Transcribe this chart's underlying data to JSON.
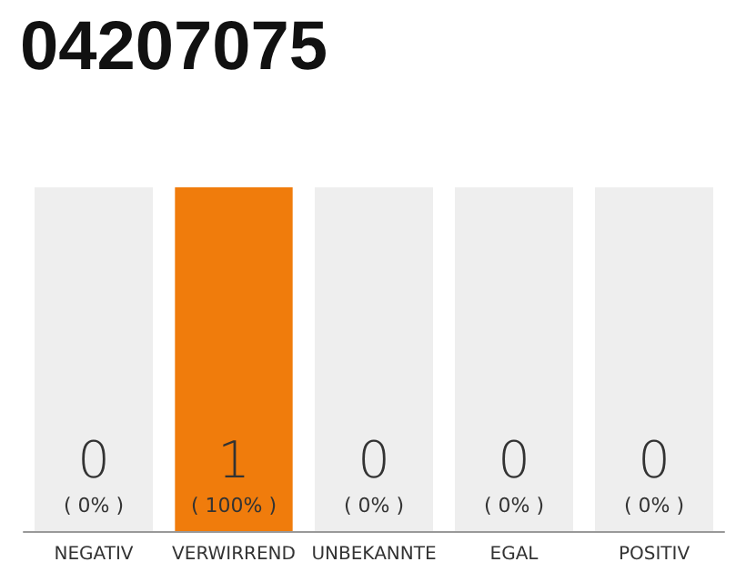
{
  "chart_data": {
    "type": "bar",
    "title": "04207075",
    "categories": [
      "NEGATIV",
      "VERWIRREND",
      "UNBEKANNTE",
      "EGAL",
      "POSITIV"
    ],
    "values": [
      0,
      1,
      0,
      0,
      0
    ],
    "color": "#f07c0c",
    "value_labels": [
      "0\n( 0% )",
      "1\n( 100% )",
      "0\n( 0% )",
      "0\n( 0% )",
      "0\n( 0% )"
    ],
    "tick_labels": "x",
    "bands": [
      {
        "axis": "x",
        "from": "NEGATIV",
        "to": "NEGATIV",
        "color": "#eeeeee"
      },
      {
        "axis": "x",
        "from": "UNBEKANNTE",
        "to": "UNBEKANNTE",
        "color": "#eeeeee"
      },
      {
        "axis": "x",
        "from": "EGAL",
        "to": "EGAL",
        "color": "#eeeeee"
      },
      {
        "axis": "x",
        "from": "POSITIV",
        "to": "POSITIV",
        "color": "#eeeeee"
      }
    ]
  }
}
